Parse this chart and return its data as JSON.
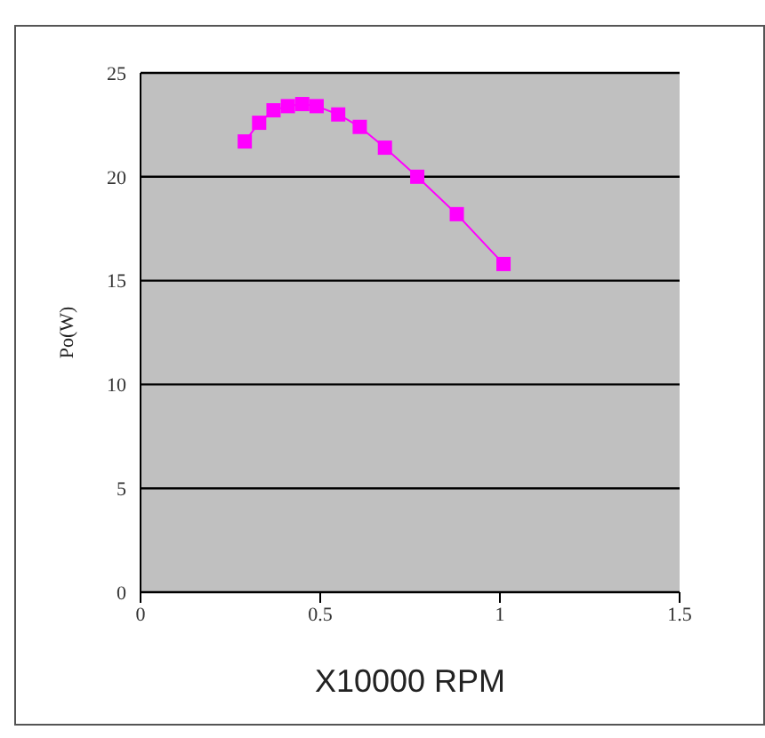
{
  "chart_data": {
    "type": "line",
    "xlabel": "X10000 RPM",
    "ylabel": "Po(W)",
    "x": [
      0.29,
      0.33,
      0.37,
      0.41,
      0.45,
      0.49,
      0.55,
      0.61,
      0.68,
      0.77,
      0.88,
      1.01
    ],
    "series": [
      {
        "color": "#ff00ff",
        "values": [
          21.7,
          22.6,
          23.2,
          23.4,
          23.5,
          23.4,
          23.0,
          22.4,
          21.4,
          20.0,
          18.2,
          15.8
        ]
      }
    ],
    "xlim": [
      0,
      1.5
    ],
    "xticks": [
      0,
      0.5,
      1,
      1.5
    ],
    "ylim": [
      0,
      25
    ],
    "yticks": [
      0,
      5,
      10,
      15,
      20,
      25
    ],
    "grid": "y",
    "marker": "square",
    "line_style": "solid",
    "legend": false
  }
}
